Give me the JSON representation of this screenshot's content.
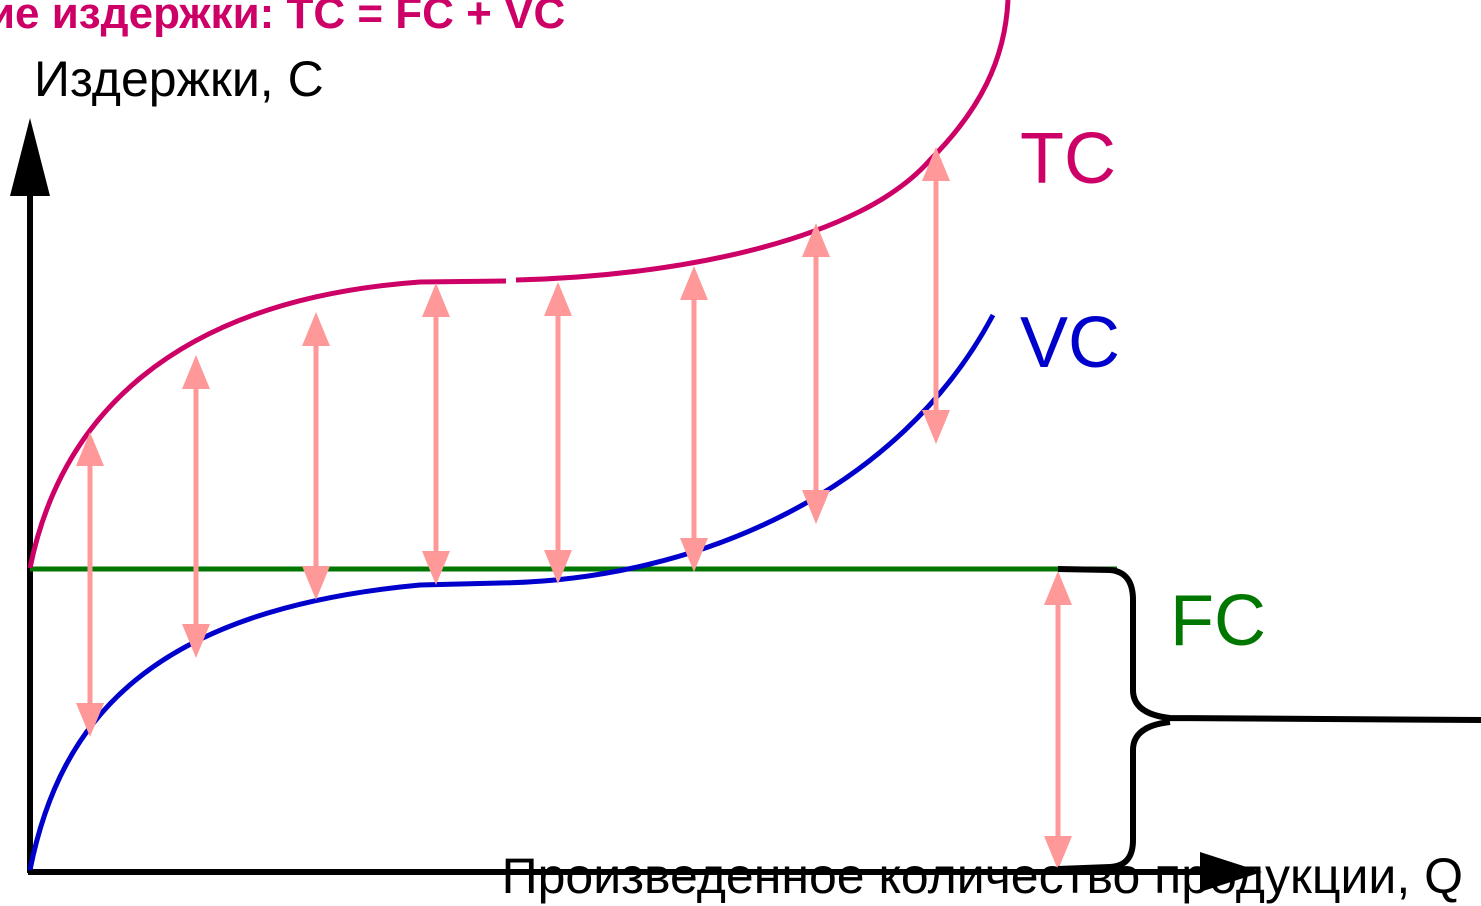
{
  "chart_data": {
    "type": "line",
    "title": "ие издержки: TC = FC + VC",
    "ylabel": "Издержки, C",
    "xlabel": "Произведенное количество продукции, Q",
    "x_ticks": [],
    "y_ticks": [],
    "grid": false,
    "colors": {
      "title": "#cc0066",
      "TC": "#cc0066",
      "VC": "#0000cc",
      "FC": "#007700",
      "arrows": "#ff9999",
      "axes": "#000000"
    },
    "series": [
      {
        "name": "TC"
      },
      {
        "name": "VC"
      },
      {
        "name": "FC"
      }
    ],
    "annotations": {
      "vertical_gap_arrows": "TC − VC = FC",
      "brace": "FC"
    }
  }
}
